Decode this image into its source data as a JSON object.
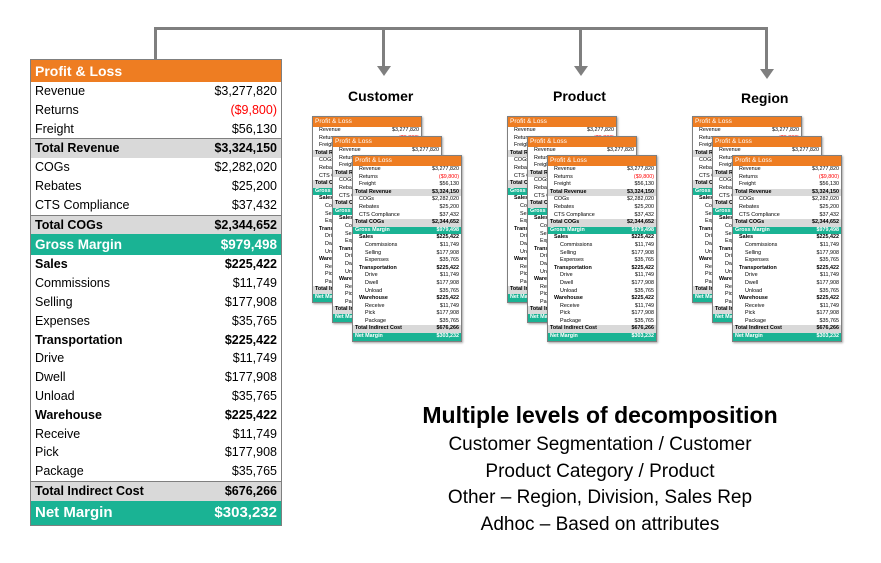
{
  "main_table": {
    "header": "Profit & Loss",
    "rows": [
      {
        "label": "Revenue",
        "value": "$3,277,820",
        "style": "ind1"
      },
      {
        "label": "Returns",
        "value": "($9,800)",
        "style": "ind1 neg"
      },
      {
        "label": "Freight",
        "value": "$56,130",
        "style": "ind1"
      },
      {
        "label": "Total Revenue",
        "value": "$3,324,150",
        "style": "total top"
      },
      {
        "label": "COGs",
        "value": "$2,282,020",
        "style": "ind1"
      },
      {
        "label": "Rebates",
        "value": "$25,200",
        "style": "ind1"
      },
      {
        "label": "CTS Compliance",
        "value": "$37,432",
        "style": "ind1"
      },
      {
        "label": "Total COGs",
        "value": "$2,344,652",
        "style": "total top"
      },
      {
        "label": "Gross Margin",
        "value": "$979,498",
        "style": "teal"
      },
      {
        "label": "Sales",
        "value": "$225,422",
        "style": "ind1 bold"
      },
      {
        "label": "Commissions",
        "value": "$11,749",
        "style": "ind2"
      },
      {
        "label": "Selling",
        "value": "$177,908",
        "style": "ind2"
      },
      {
        "label": "Expenses",
        "value": "$35,765",
        "style": "ind2"
      },
      {
        "label": "Transportation",
        "value": "$225,422",
        "style": "ind1 bold"
      },
      {
        "label": "Drive",
        "value": "$11,749",
        "style": "ind2"
      },
      {
        "label": "Dwell",
        "value": "$177,908",
        "style": "ind2"
      },
      {
        "label": "Unload",
        "value": "$35,765",
        "style": "ind2"
      },
      {
        "label": "Warehouse",
        "value": "$225,422",
        "style": "ind1 bold"
      },
      {
        "label": "Receive",
        "value": "$11,749",
        "style": "ind2"
      },
      {
        "label": "Pick",
        "value": "$177,908",
        "style": "ind2"
      },
      {
        "label": "Package",
        "value": "$35,765",
        "style": "ind2"
      },
      {
        "label": "Total Indirect Cost",
        "value": "$676,266",
        "style": "total top"
      },
      {
        "label": "Net Margin",
        "value": "$303,232",
        "style": "teal big"
      }
    ]
  },
  "mini_table": {
    "header": "Profit & Loss",
    "rows": [
      {
        "label": "Revenue",
        "value": "$3,277,820",
        "style": "m1"
      },
      {
        "label": "Returns",
        "value": "($9,800)",
        "style": "m1 mneg"
      },
      {
        "label": "Freight",
        "value": "$56,130",
        "style": "m1"
      },
      {
        "label": "Total Revenue",
        "value": "$3,324,150",
        "style": "mtot"
      },
      {
        "label": "COGs",
        "value": "$2,282,020",
        "style": "m1"
      },
      {
        "label": "Rebates",
        "value": "$25,200",
        "style": "m1"
      },
      {
        "label": "CTS Compliance",
        "value": "$37,432",
        "style": "m1"
      },
      {
        "label": "Total COGs",
        "value": "$2,344,652",
        "style": "mtot"
      },
      {
        "label": "Gross Margin",
        "value": "$979,498",
        "style": "mteal"
      },
      {
        "label": "Sales",
        "value": "$225,422",
        "style": "m1 mbold"
      },
      {
        "label": "Commissions",
        "value": "$11,749",
        "style": "m2"
      },
      {
        "label": "Selling",
        "value": "$177,908",
        "style": "m2"
      },
      {
        "label": "Expenses",
        "value": "$35,765",
        "style": "m2"
      },
      {
        "label": "Transportation",
        "value": "$225,422",
        "style": "m1 mbold"
      },
      {
        "label": "Drive",
        "value": "$11,749",
        "style": "m2"
      },
      {
        "label": "Dwell",
        "value": "$177,908",
        "style": "m2"
      },
      {
        "label": "Unload",
        "value": "$35,765",
        "style": "m2"
      },
      {
        "label": "Warehouse",
        "value": "$225,422",
        "style": "m1 mbold"
      },
      {
        "label": "Receive",
        "value": "$11,749",
        "style": "m2"
      },
      {
        "label": "Pick",
        "value": "$177,908",
        "style": "m2"
      },
      {
        "label": "Package",
        "value": "$35,765",
        "style": "m2"
      },
      {
        "label": "Total Indirect Cost",
        "value": "$676,266",
        "style": "mtot"
      },
      {
        "label": "Net Margin",
        "value": "$303,232",
        "style": "mteal"
      }
    ]
  },
  "groups": {
    "customer": "Customer",
    "product": "Product",
    "region": "Region"
  },
  "caption": {
    "title": "Multiple levels of decomposition",
    "lines": [
      "Customer Segmentation / Customer",
      "Product Category / Product",
      "Other – Region, Division, Sales Rep",
      "Adhoc – Based on attributes"
    ]
  },
  "colors": {
    "header_orange": "#ee7d22",
    "teal": "#1ab394",
    "connector_gray": "#7f7f7f",
    "negative_red": "#ff0000"
  }
}
